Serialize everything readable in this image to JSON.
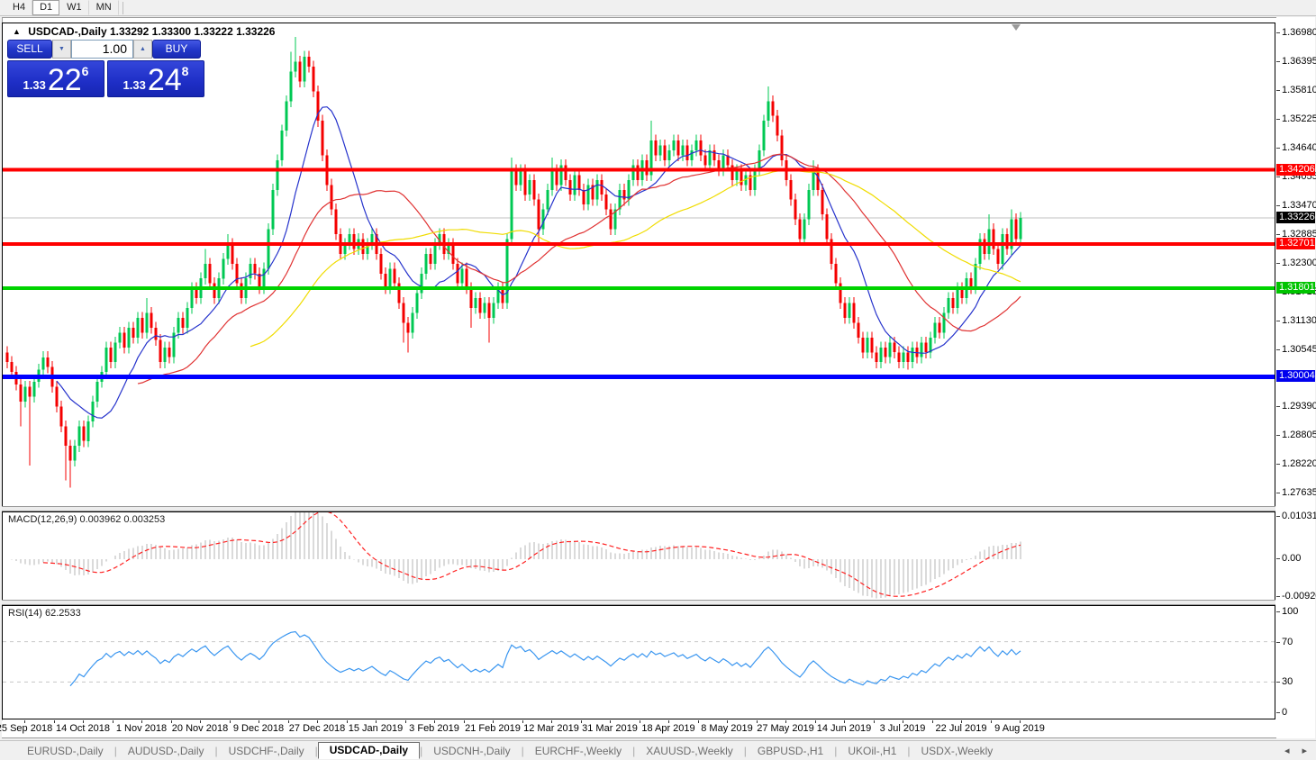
{
  "toolbar": {
    "timeframes": [
      "H4",
      "D1",
      "W1",
      "MN"
    ],
    "active_timeframe": "D1"
  },
  "chart_header": {
    "symbol_line": "USDCAD-,Daily",
    "ohlc": "1.33292 1.33300 1.33222 1.33226"
  },
  "trade_panel": {
    "sell_label": "SELL",
    "buy_label": "BUY",
    "volume": "1.00",
    "sell_price": {
      "base": "1.33",
      "big": "22",
      "sup": "6"
    },
    "buy_price": {
      "base": "1.33",
      "big": "24",
      "sup": "8"
    }
  },
  "price_axis": {
    "labels": [
      "1.36980",
      "1.36395",
      "1.35810",
      "1.35225",
      "1.34640",
      "1.34055",
      "1.33470",
      "1.32885",
      "1.32300",
      "1.31715",
      "1.31130",
      "1.30545",
      "1.29390",
      "1.28805",
      "1.28220",
      "1.27635"
    ]
  },
  "levels": [
    {
      "label": "1.34206",
      "value": 1.34206,
      "color": "#ff0000",
      "width": 4,
      "badge": "#ff0000"
    },
    {
      "label": "1.32701",
      "value": 1.32701,
      "color": "#ff0000",
      "width": 4,
      "badge": "#ff0000"
    },
    {
      "label": "1.31801",
      "value": 1.31801,
      "color": "#00d300",
      "width": 4,
      "badge": "#00c400"
    },
    {
      "label": "1.30004",
      "value": 1.30004,
      "color": "#0000ff",
      "width": 5,
      "badge": "#0000ee"
    },
    {
      "label": "1.33226",
      "value": 1.33226,
      "color": "#c0c0c0",
      "width": 1,
      "badge": "#000000",
      "current": true
    }
  ],
  "macd_panel": {
    "label": "MACD(12,26,9) 0.003962 0.003253",
    "params": {
      "fast": 12,
      "slow": 26,
      "signal": 9
    },
    "current": {
      "macd": 0.003962,
      "signal": 0.003253
    },
    "axis_values": [
      0.010311,
      0,
      -0.009203
    ],
    "axis_labels": [
      "0.010311",
      "0.00",
      "-0.009203"
    ],
    "histogram_color": "#b4b4b4",
    "signal_color": "#ff2222"
  },
  "rsi_panel": {
    "label": "RSI(14) 62.2533",
    "period": 14,
    "current": 62.2533,
    "axis_values": [
      100,
      70,
      30,
      0
    ],
    "axis_labels": [
      "100",
      "70",
      "30",
      "0"
    ],
    "guide_levels": [
      70,
      30
    ],
    "line_color": "#3a96f0"
  },
  "chart_data": {
    "type": "candlestick",
    "symbol": "USDCAD-",
    "timeframe": "Daily",
    "title": "USDCAD-,Daily 1.33292 1.33300 1.33222 1.33226",
    "ylim": [
      1.27635,
      1.372
    ],
    "dates": [
      "25 Sep 2018",
      "14 Oct 2018",
      "1 Nov 2018",
      "20 Nov 2018",
      "9 Dec 2018",
      "27 Dec 2018",
      "15 Jan 2019",
      "3 Feb 2019",
      "21 Feb 2019",
      "12 Mar 2019",
      "31 Mar 2019",
      "18 Apr 2019",
      "8 May 2019",
      "27 May 2019",
      "14 Jun 2019",
      "3 Jul 2019",
      "22 Jul 2019",
      "9 Aug 2019"
    ],
    "label_indices": [
      4,
      17,
      30,
      43,
      56,
      69,
      82,
      95,
      108,
      121,
      134,
      147,
      160,
      173,
      186,
      199,
      212,
      225
    ],
    "first_open": 1.305,
    "last_close": 1.33226,
    "bull_color": "#00c853",
    "bear_color": "#f40000",
    "ma_lines": [
      {
        "period": 12,
        "color": "#2633cc"
      },
      {
        "period": 30,
        "color": "#e03232"
      },
      {
        "period": 55,
        "color": "#f0dc00"
      }
    ],
    "closes": [
      1.303,
      1.301,
      1.2985,
      1.295,
      1.298,
      1.296,
      1.299,
      1.3015,
      1.304,
      1.302,
      1.298,
      1.294,
      1.29,
      1.286,
      1.283,
      1.286,
      1.29,
      1.287,
      1.291,
      1.295,
      1.299,
      1.301,
      1.306,
      1.303,
      1.307,
      1.309,
      1.306,
      1.31,
      1.308,
      1.312,
      1.309,
      1.313,
      1.31,
      1.3075,
      1.303,
      1.306,
      1.304,
      1.309,
      1.312,
      1.31,
      1.314,
      1.318,
      1.316,
      1.32,
      1.323,
      1.319,
      1.316,
      1.32,
      1.324,
      1.327,
      1.323,
      1.319,
      1.316,
      1.32,
      1.323,
      1.321,
      1.318,
      1.322,
      1.33,
      1.338,
      1.344,
      1.35,
      1.356,
      1.362,
      1.364,
      1.36,
      1.365,
      1.363,
      1.358,
      1.352,
      1.345,
      1.339,
      1.334,
      1.329,
      1.325,
      1.327,
      1.329,
      1.326,
      1.328,
      1.325,
      1.327,
      1.329,
      1.325,
      1.321,
      1.318,
      1.322,
      1.319,
      1.315,
      1.311,
      1.309,
      1.313,
      1.317,
      1.321,
      1.325,
      1.323,
      1.327,
      1.329,
      1.325,
      1.327,
      1.323,
      1.319,
      1.322,
      1.318,
      1.314,
      1.316,
      1.313,
      1.315,
      1.312,
      1.315,
      1.318,
      1.315,
      1.328,
      1.342,
      1.339,
      1.342,
      1.337,
      1.34,
      1.336,
      1.33,
      1.334,
      1.338,
      1.342,
      1.339,
      1.343,
      1.34,
      1.337,
      1.341,
      1.338,
      1.335,
      1.339,
      1.336,
      1.34,
      1.337,
      1.334,
      1.33,
      1.334,
      1.338,
      1.336,
      1.34,
      1.343,
      1.34,
      1.344,
      1.341,
      1.348,
      1.345,
      1.347,
      1.344,
      1.346,
      1.348,
      1.345,
      1.347,
      1.344,
      1.346,
      1.348,
      1.345,
      1.343,
      1.346,
      1.344,
      1.342,
      1.345,
      1.343,
      1.34,
      1.342,
      1.339,
      1.341,
      1.338,
      1.342,
      1.346,
      1.352,
      1.356,
      1.353,
      1.349,
      1.344,
      1.34,
      1.336,
      1.332,
      1.328,
      1.332,
      1.338,
      1.342,
      1.338,
      1.333,
      1.328,
      1.323,
      1.319,
      1.315,
      1.312,
      1.315,
      1.311,
      1.308,
      1.305,
      1.308,
      1.305,
      1.303,
      1.306,
      1.304,
      1.307,
      1.305,
      1.303,
      1.305,
      1.303,
      1.306,
      1.304,
      1.307,
      1.305,
      1.308,
      1.311,
      1.309,
      1.313,
      1.316,
      1.314,
      1.318,
      1.316,
      1.32,
      1.318,
      1.323,
      1.328,
      1.325,
      1.33,
      1.326,
      1.323,
      1.329,
      1.326,
      1.332,
      1.328,
      1.33226
    ],
    "spikes": [
      {
        "i": 3,
        "l": 1.29
      },
      {
        "i": 5,
        "l": 1.282
      },
      {
        "i": 13,
        "l": 1.279
      },
      {
        "i": 14,
        "l": 1.2775
      },
      {
        "i": 31,
        "h": 1.316
      },
      {
        "i": 44,
        "h": 1.326
      },
      {
        "i": 49,
        "h": 1.329
      },
      {
        "i": 63,
        "h": 1.366
      },
      {
        "i": 64,
        "h": 1.369
      },
      {
        "i": 88,
        "l": 1.307
      },
      {
        "i": 89,
        "l": 1.305
      },
      {
        "i": 103,
        "l": 1.31
      },
      {
        "i": 107,
        "l": 1.307
      },
      {
        "i": 112,
        "h": 1.3445
      },
      {
        "i": 118,
        "l": 1.327
      },
      {
        "i": 121,
        "h": 1.3445
      },
      {
        "i": 143,
        "h": 1.352
      },
      {
        "i": 169,
        "h": 1.359
      },
      {
        "i": 176,
        "l": 1.327
      },
      {
        "i": 179,
        "h": 1.344
      },
      {
        "i": 193,
        "l": 1.302
      },
      {
        "i": 200,
        "l": 1.3015
      },
      {
        "i": 218,
        "h": 1.333
      },
      {
        "i": 223,
        "h": 1.334
      }
    ]
  },
  "tabs": {
    "items": [
      {
        "label": "EURUSD-,Daily",
        "active": false
      },
      {
        "label": "AUDUSD-,Daily",
        "active": false
      },
      {
        "label": "USDCHF-,Daily",
        "active": false
      },
      {
        "label": "USDCAD-,Daily",
        "active": true
      },
      {
        "label": "USDCNH-,Daily",
        "active": false
      },
      {
        "label": "EURCHF-,Weekly",
        "active": false
      },
      {
        "label": "XAUUSD-,Weekly",
        "active": false
      },
      {
        "label": "GBPUSD-,H1",
        "active": false
      },
      {
        "label": "UKOil-,H1",
        "active": false
      },
      {
        "label": "USDX-,Weekly",
        "active": false
      }
    ],
    "nav_prev": "◂",
    "nav_next": "▸"
  }
}
